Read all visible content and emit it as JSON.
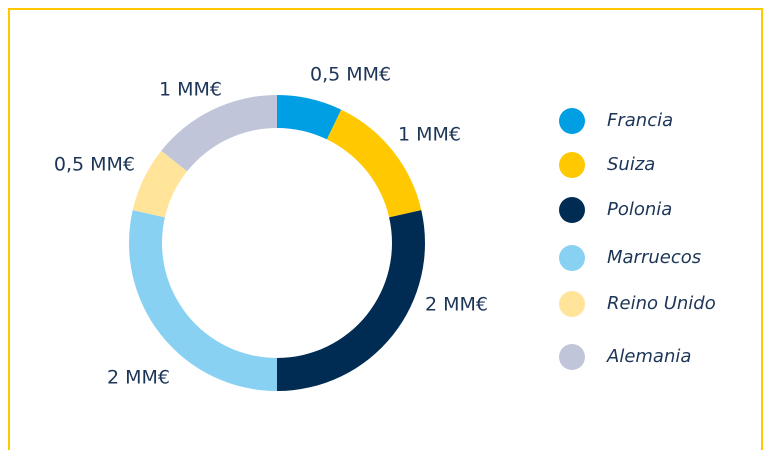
{
  "chart_data": {
    "type": "donut",
    "categories": [
      "Francia",
      "Suiza",
      "Polonia",
      "Marruecos",
      "Reino Unido",
      "Alemania"
    ],
    "values": [
      0.5,
      1,
      2,
      2,
      0.5,
      1
    ],
    "value_labels": [
      "0,5 MM€",
      "1 MM€",
      "2 MM€",
      "2 MM€",
      "0,5 MM€",
      "1 MM€"
    ],
    "colors": [
      "#009fe3",
      "#ffc800",
      "#002c54",
      "#89d1f3",
      "#ffe49a",
      "#c0c5d9"
    ],
    "legend": "right"
  }
}
